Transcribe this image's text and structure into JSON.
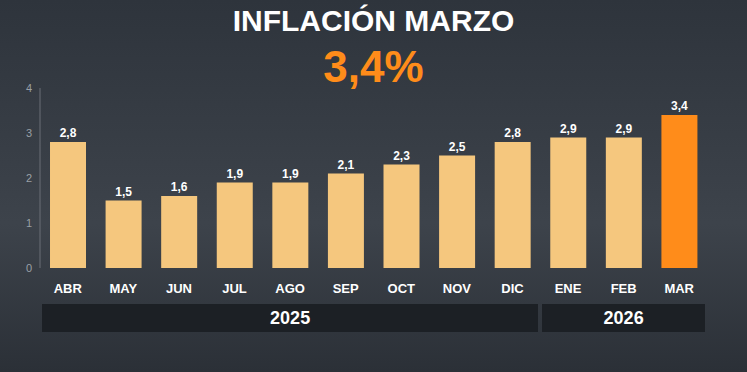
{
  "chart_data": {
    "type": "bar",
    "title": "INFLACIÓN MARZO",
    "subtitle": "3,4%",
    "categories": [
      "ABR",
      "MAY",
      "JUN",
      "JUL",
      "AGO",
      "SEP",
      "OCT",
      "NOV",
      "DIC",
      "ENE",
      "FEB",
      "MAR"
    ],
    "values": [
      2.8,
      1.5,
      1.6,
      1.9,
      1.9,
      2.1,
      2.3,
      2.5,
      2.8,
      2.9,
      2.9,
      3.4
    ],
    "value_labels": [
      "2,8",
      "1,5",
      "1,6",
      "1,9",
      "1,9",
      "2,1",
      "2,3",
      "2,5",
      "2,8",
      "2,9",
      "2,9",
      "3,4"
    ],
    "colors": [
      "#f5c77e",
      "#f5c77e",
      "#f5c77e",
      "#f5c77e",
      "#f5c77e",
      "#f5c77e",
      "#f5c77e",
      "#f5c77e",
      "#f5c77e",
      "#f5c77e",
      "#f5c77e",
      "#ff8c1a"
    ],
    "ylim": [
      0,
      4
    ],
    "yticks": [
      0,
      1,
      2,
      3,
      4
    ],
    "grid": false,
    "data_labels": true,
    "groups": [
      {
        "label": "2025",
        "categories": [
          "ABR",
          "MAY",
          "JUN",
          "JUL",
          "AGO",
          "SEP",
          "OCT",
          "NOV",
          "DIC"
        ]
      },
      {
        "label": "2026",
        "categories": [
          "ENE",
          "FEB",
          "MAR"
        ]
      }
    ]
  }
}
